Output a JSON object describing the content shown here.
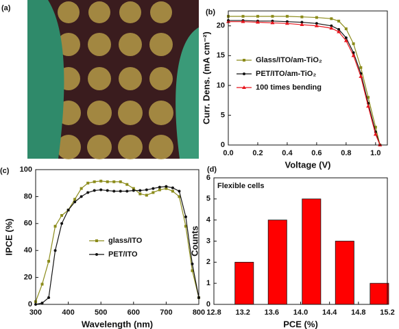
{
  "photo": {
    "label": "(a)"
  },
  "chart_data": [
    {
      "type": "line",
      "label": "(b)",
      "xlabel": "Voltage (V)",
      "ylabel": "Curr. Dens. (mA cm⁻²)",
      "xlim": [
        0,
        1.08
      ],
      "ylim": [
        0,
        22.5
      ],
      "xticks": [
        {
          "value": 0,
          "label": "0.0"
        },
        0.2,
        0.4,
        0.6,
        0.8,
        {
          "value": 1,
          "label": "1.0"
        }
      ],
      "yticks": [
        0,
        5,
        10,
        15,
        20
      ],
      "legend": "center",
      "x": [
        0,
        0.1,
        0.2,
        0.3,
        0.4,
        0.5,
        0.6,
        0.7,
        0.75,
        0.8,
        0.85,
        0.9,
        0.95,
        1.0,
        1.03
      ],
      "series": [
        {
          "name": "Glass/ITO/am-TiO₂",
          "color": "#8b8b1a",
          "marker": "square",
          "values": [
            21.6,
            21.6,
            21.6,
            21.6,
            21.6,
            21.5,
            21.4,
            21.2,
            20.8,
            19.5,
            17,
            13,
            8,
            3,
            0
          ]
        },
        {
          "name": "PET/ITO/am-TiO₂",
          "color": "#111111",
          "marker": "circle",
          "values": [
            20.9,
            20.9,
            20.8,
            20.8,
            20.7,
            20.6,
            20.4,
            20.0,
            19.4,
            18.0,
            15.5,
            12,
            7,
            2.2,
            0
          ]
        },
        {
          "name": "100 times bending",
          "color": "#e8141c",
          "marker": "triangle",
          "values": [
            20.7,
            20.7,
            20.6,
            20.5,
            20.4,
            20.2,
            20.0,
            19.6,
            19.0,
            17.5,
            15,
            11.5,
            6.5,
            1.8,
            0
          ]
        }
      ]
    },
    {
      "type": "line",
      "label": "(c)",
      "xlabel": "Wavelength (nm)",
      "ylabel": "IPCE (%)",
      "xlim": [
        300,
        800
      ],
      "ylim": [
        0,
        100
      ],
      "xticks": [
        300,
        400,
        500,
        600,
        700,
        800
      ],
      "yticks": [
        0,
        20,
        40,
        60,
        80,
        100
      ],
      "legend": "center",
      "x": [
        300,
        320,
        340,
        360,
        380,
        400,
        420,
        440,
        460,
        480,
        500,
        520,
        540,
        560,
        580,
        600,
        620,
        640,
        660,
        680,
        700,
        720,
        740,
        760,
        780,
        800
      ],
      "series": [
        {
          "name": "glass/ITO",
          "color": "#8b8b1a",
          "marker": "square",
          "values": [
            2,
            15,
            32,
            58,
            66,
            70,
            78,
            86,
            90,
            91,
            91.5,
            91,
            91,
            91,
            89,
            86,
            82,
            81,
            83,
            85,
            86,
            84,
            80,
            58,
            25,
            5
          ]
        },
        {
          "name": "PET/ITO",
          "color": "#111111",
          "marker": "circle",
          "values": [
            0,
            1,
            5,
            40,
            60,
            70,
            76,
            80,
            83,
            84.5,
            85,
            84.5,
            84,
            84,
            84,
            84.5,
            84.5,
            85,
            86,
            87,
            87.5,
            86.5,
            84,
            65,
            30,
            5
          ]
        }
      ]
    },
    {
      "type": "bar",
      "label": "(d)",
      "xlabel": "PCE (%)",
      "ylabel": "Counts",
      "annotation": "Flexible cells",
      "xlim": [
        12.8,
        15.2
      ],
      "ylim": [
        0,
        6
      ],
      "xticks": [
        12.8,
        13.2,
        13.6,
        {
          "value": 14,
          "label": "14.0"
        },
        14.4,
        14.8,
        15.2
      ],
      "yticks": [
        0,
        1,
        2,
        3,
        4,
        5,
        6
      ],
      "color": "#ff0000",
      "x": [
        13.22,
        13.68,
        14.15,
        14.61,
        15.09
      ],
      "values": [
        2,
        4,
        5,
        3,
        1
      ]
    }
  ]
}
